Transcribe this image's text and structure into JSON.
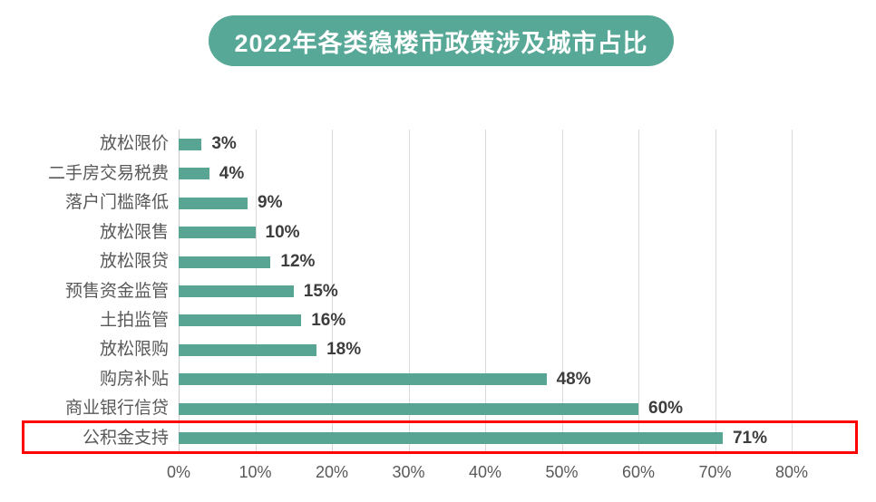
{
  "title": {
    "text": "2022年各类稳楼市政策涉及城市占比"
  },
  "colors": {
    "title_pill_teal": "#58A897",
    "bar_teal": "#58A593",
    "highlight_red": "#FE0000",
    "gridline_gray": "#D9D9D9",
    "category_label_gray": "#595959",
    "value_label_dark": "#3D3D3D",
    "title_text_white": "#FFFFFF"
  },
  "chart_data": {
    "type": "bar",
    "orientation": "horizontal",
    "title": "2022年各类稳楼市政策涉及城市占比",
    "categories": [
      "放松限价",
      "二手房交易税费",
      "落户门槛降低",
      "放松限售",
      "放松限贷",
      "预售资金监管",
      "土拍监管",
      "放松限购",
      "购房补贴",
      "商业银行信贷",
      "公积金支持"
    ],
    "values": [
      3,
      4,
      9,
      10,
      12,
      15,
      16,
      18,
      48,
      60,
      71
    ],
    "value_labels": [
      "3%",
      "4%",
      "9%",
      "10%",
      "12%",
      "15%",
      "16%",
      "18%",
      "48%",
      "60%",
      "71%"
    ],
    "x_tick_labels": [
      "0%",
      "10%",
      "20%",
      "30%",
      "40%",
      "50%",
      "60%",
      "70%",
      "80%"
    ],
    "x_tick_values": [
      0,
      10,
      20,
      30,
      40,
      50,
      60,
      70,
      80
    ],
    "xlim": [
      0,
      80
    ],
    "grid": true,
    "legend": false,
    "highlighted_category": "公积金支持",
    "highlighted_value": 71
  }
}
